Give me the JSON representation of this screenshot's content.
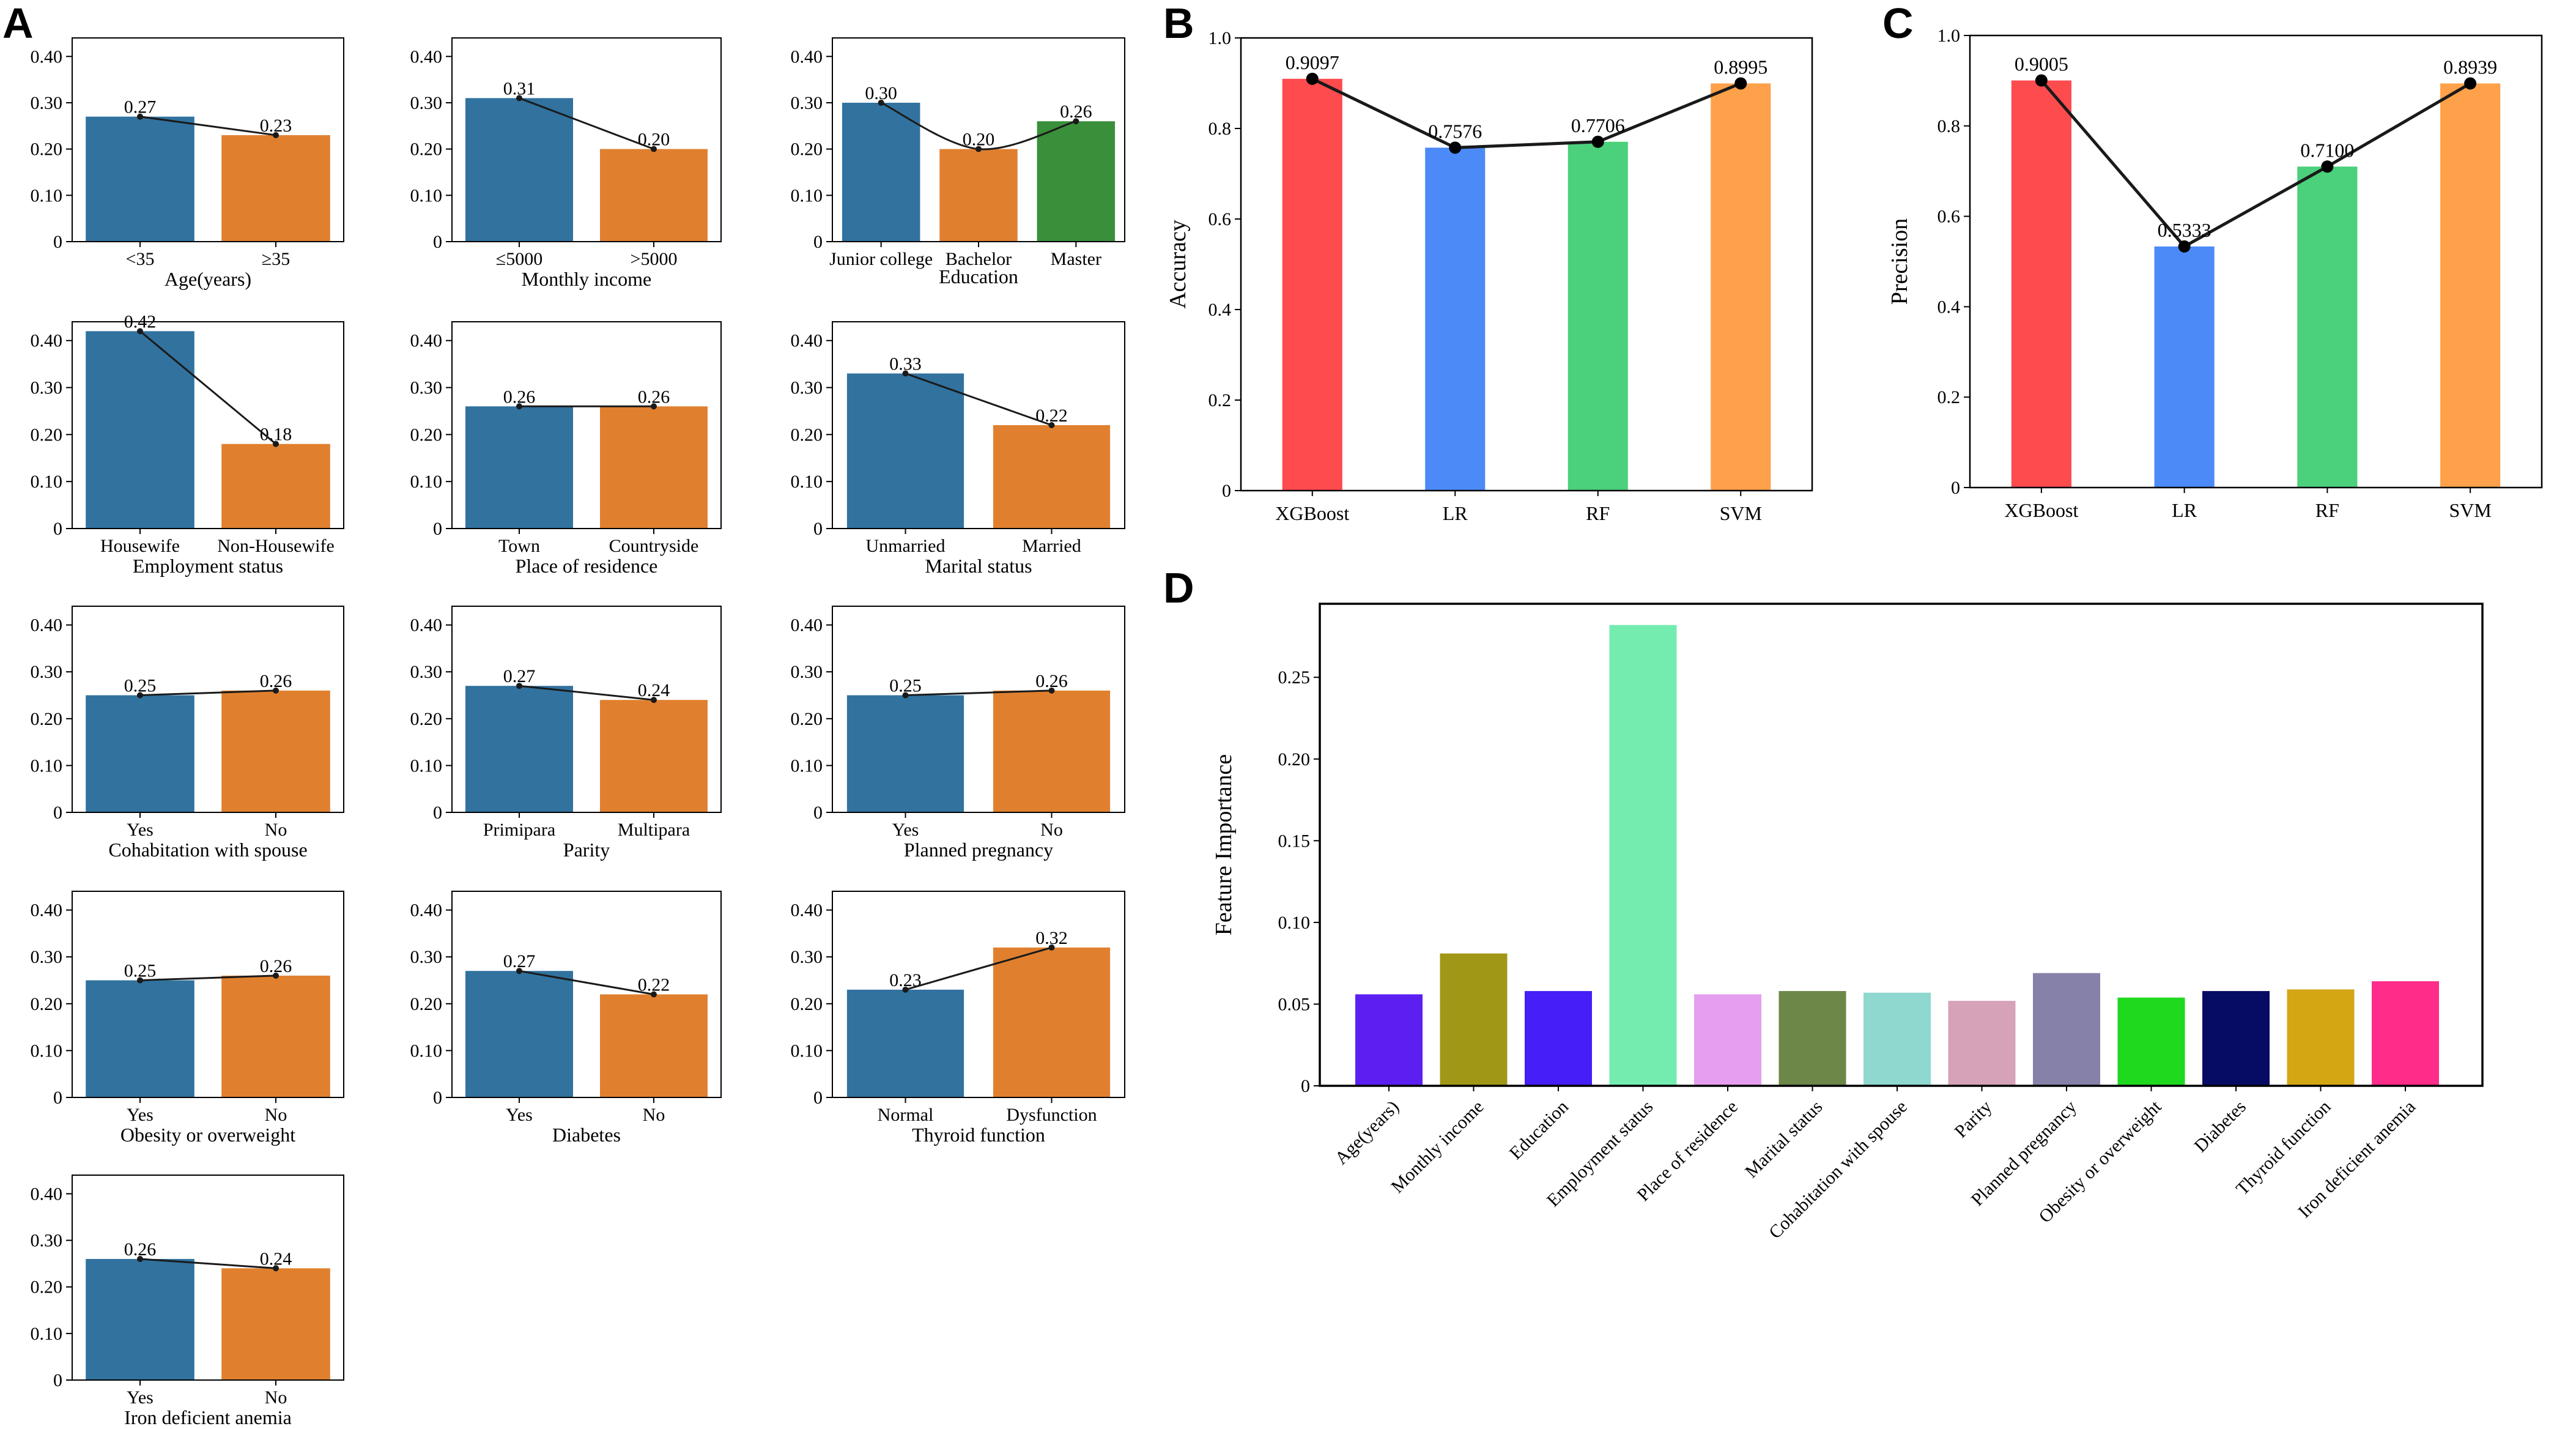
{
  "panel_letters": [
    "A",
    "B",
    "C",
    "D"
  ],
  "colors": {
    "blue": "#31729f",
    "orange": "#e0802f",
    "green": "#3a8f3a",
    "line": "#1a1a1a"
  },
  "chart_data": [
    {
      "panel": "A",
      "type": "bar",
      "title": "",
      "xlabel": "Age(years)",
      "ylabel": "",
      "categories": [
        "<35",
        "≥35"
      ],
      "values": [
        0.27,
        0.23
      ],
      "labels": [
        "0.27",
        "0.23"
      ],
      "ylim": [
        0,
        0.44
      ],
      "yticks": [
        "0",
        "0.10",
        "0.20",
        "0.30",
        "0.40"
      ]
    },
    {
      "panel": "A",
      "type": "bar",
      "title": "",
      "xlabel": "Monthly income",
      "ylabel": "",
      "categories": [
        "≤5000",
        ">5000"
      ],
      "values": [
        0.31,
        0.2
      ],
      "labels": [
        "0.31",
        "0.20"
      ],
      "ylim": [
        0,
        0.44
      ],
      "yticks": [
        "0",
        "0.10",
        "0.20",
        "0.30",
        "0.40"
      ]
    },
    {
      "panel": "A",
      "type": "bar",
      "title": "",
      "xlabel": "Education",
      "ylabel": "",
      "categories": [
        "Junior college",
        "Bachelor",
        "Master"
      ],
      "values": [
        0.3,
        0.2,
        0.26
      ],
      "labels": [
        "0.30",
        "0.20",
        "0.26"
      ],
      "ylim": [
        0,
        0.44
      ],
      "yticks": [
        "0",
        "0.10",
        "0.20",
        "0.30",
        "0.40"
      ]
    },
    {
      "panel": "A",
      "type": "bar",
      "title": "",
      "xlabel": "Employment status",
      "ylabel": "",
      "categories": [
        "Housewife",
        "Non-Housewife"
      ],
      "values": [
        0.42,
        0.18
      ],
      "labels": [
        "0.42",
        "0.18"
      ],
      "ylim": [
        0,
        0.44
      ],
      "yticks": [
        "0",
        "0.10",
        "0.20",
        "0.30",
        "0.40"
      ]
    },
    {
      "panel": "A",
      "type": "bar",
      "title": "",
      "xlabel": "Place of residence",
      "ylabel": "",
      "categories": [
        "Town",
        "Countryside"
      ],
      "values": [
        0.26,
        0.26
      ],
      "labels": [
        "0.26",
        "0.26"
      ],
      "ylim": [
        0,
        0.44
      ],
      "yticks": [
        "0",
        "0.10",
        "0.20",
        "0.30",
        "0.40"
      ]
    },
    {
      "panel": "A",
      "type": "bar",
      "title": "",
      "xlabel": "Marital status",
      "ylabel": "",
      "categories": [
        "Unmarried",
        "Married"
      ],
      "values": [
        0.33,
        0.22
      ],
      "labels": [
        "0.33",
        "0.22"
      ],
      "ylim": [
        0,
        0.44
      ],
      "yticks": [
        "0",
        "0.10",
        "0.20",
        "0.30",
        "0.40"
      ]
    },
    {
      "panel": "A",
      "type": "bar",
      "title": "",
      "xlabel": "Cohabitation with spouse",
      "ylabel": "",
      "categories": [
        "Yes",
        "No"
      ],
      "values": [
        0.25,
        0.26
      ],
      "labels": [
        "0.25",
        "0.26"
      ],
      "ylim": [
        0,
        0.44
      ],
      "yticks": [
        "0",
        "0.10",
        "0.20",
        "0.30",
        "0.40"
      ]
    },
    {
      "panel": "A",
      "type": "bar",
      "title": "",
      "xlabel": "Parity",
      "ylabel": "",
      "categories": [
        "Primipara",
        "Multipara"
      ],
      "values": [
        0.27,
        0.24
      ],
      "labels": [
        "0.27",
        "0.24"
      ],
      "ylim": [
        0,
        0.44
      ],
      "yticks": [
        "0",
        "0.10",
        "0.20",
        "0.30",
        "0.40"
      ]
    },
    {
      "panel": "A",
      "type": "bar",
      "title": "",
      "xlabel": "Planned pregnancy",
      "ylabel": "",
      "categories": [
        "Yes",
        "No"
      ],
      "values": [
        0.25,
        0.26
      ],
      "labels": [
        "0.25",
        "0.26"
      ],
      "ylim": [
        0,
        0.44
      ],
      "yticks": [
        "0",
        "0.10",
        "0.20",
        "0.30",
        "0.40"
      ]
    },
    {
      "panel": "A",
      "type": "bar",
      "title": "",
      "xlabel": "Obesity or overweight",
      "ylabel": "",
      "categories": [
        "Yes",
        "No"
      ],
      "values": [
        0.25,
        0.26
      ],
      "labels": [
        "0.25",
        "0.26"
      ],
      "ylim": [
        0,
        0.44
      ],
      "yticks": [
        "0",
        "0.10",
        "0.20",
        "0.30",
        "0.40"
      ]
    },
    {
      "panel": "A",
      "type": "bar",
      "title": "",
      "xlabel": "Diabetes",
      "ylabel": "",
      "categories": [
        "Yes",
        "No"
      ],
      "values": [
        0.27,
        0.22
      ],
      "labels": [
        "0.27",
        "0.22"
      ],
      "ylim": [
        0,
        0.44
      ],
      "yticks": [
        "0",
        "0.10",
        "0.20",
        "0.30",
        "0.40"
      ]
    },
    {
      "panel": "A",
      "type": "bar",
      "title": "",
      "xlabel": "Thyroid function",
      "ylabel": "",
      "categories": [
        "Normal",
        "Dysfunction"
      ],
      "values": [
        0.23,
        0.32
      ],
      "labels": [
        "0.23",
        "0.32"
      ],
      "ylim": [
        0,
        0.44
      ],
      "yticks": [
        "0",
        "0.10",
        "0.20",
        "0.30",
        "0.40"
      ]
    },
    {
      "panel": "A",
      "type": "bar",
      "title": "",
      "xlabel": "Iron deficient anemia",
      "ylabel": "",
      "categories": [
        "Yes",
        "No"
      ],
      "values": [
        0.26,
        0.24
      ],
      "labels": [
        "0.26",
        "0.24"
      ],
      "ylim": [
        0,
        0.44
      ],
      "yticks": [
        "0",
        "0.10",
        "0.20",
        "0.30",
        "0.40"
      ]
    },
    {
      "panel": "B",
      "type": "bar",
      "title": "",
      "xlabel": "",
      "ylabel": "Accuracy",
      "categories": [
        "XGBoost",
        "LR",
        "RF",
        "SVM"
      ],
      "values": [
        0.9097,
        0.7576,
        0.7706,
        0.8995
      ],
      "labels": [
        "0.9097",
        "0.7576",
        "0.7706",
        "0.8995"
      ],
      "colors": [
        "#fe4b4e",
        "#4c8af8",
        "#4bd07b",
        "#fea14a"
      ],
      "ylim": [
        0,
        1.0
      ],
      "yticks": [
        "0",
        "0.2",
        "0.4",
        "0.6",
        "0.8",
        "1.0"
      ]
    },
    {
      "panel": "C",
      "type": "bar",
      "title": "",
      "xlabel": "",
      "ylabel": "Precision",
      "categories": [
        "XGBoost",
        "LR",
        "RF",
        "SVM"
      ],
      "values": [
        0.9005,
        0.5333,
        0.71,
        0.8939
      ],
      "labels": [
        "0.9005",
        "0.5333",
        "0.7100",
        "0.8939"
      ],
      "colors": [
        "#fe4b4e",
        "#4c8af8",
        "#4bd07b",
        "#fea14a"
      ],
      "ylim": [
        0,
        1.0
      ],
      "yticks": [
        "0",
        "0.2",
        "0.4",
        "0.6",
        "0.8",
        "1.0"
      ]
    },
    {
      "panel": "D",
      "type": "bar",
      "title": "",
      "xlabel": "",
      "ylabel": "Feature Importance",
      "categories": [
        "Age(years)",
        "Monthly income",
        "Education",
        "Employment status",
        "Place of residence",
        "Marital status",
        "Cohabitation with spouse",
        "Parity",
        "Planned pregnancy",
        "Obesity or overweight",
        "Diabetes",
        "Thyroid function",
        "Iron deficient anemia"
      ],
      "values": [
        0.056,
        0.081,
        0.058,
        0.282,
        0.056,
        0.058,
        0.057,
        0.052,
        0.069,
        0.054,
        0.058,
        0.059,
        0.064
      ],
      "colors": [
        "#5b1ff2",
        "#a19717",
        "#461ef7",
        "#74ecb0",
        "#e69ef0",
        "#6c8747",
        "#8ed8cf",
        "#d5a2b8",
        "#8681a8",
        "#1ed91d",
        "#060c64",
        "#d4a614",
        "#ff2c89"
      ],
      "ylim": [
        0,
        0.295
      ],
      "yticks": [
        "0",
        "0.05",
        "0.10",
        "0.15",
        "0.20",
        "0.25"
      ]
    }
  ]
}
